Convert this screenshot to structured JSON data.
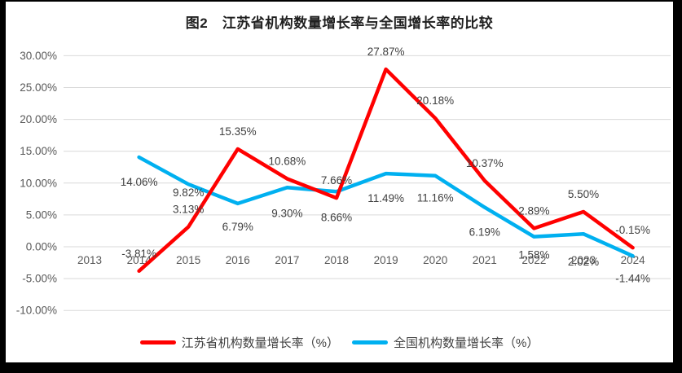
{
  "title": "图2　江苏省机构数量增长率与全国增长率的比较",
  "colors": {
    "surround": "#000000",
    "panel_background": "#FFFFFF",
    "gridline": "#D9D9D9",
    "axis_text": "#595959",
    "data_label_text": "#404040",
    "title_text": "#1F1F1F",
    "series_jiangsu": "#FF0000",
    "series_national": "#00B0F0"
  },
  "chart_data": {
    "type": "line",
    "title": "图2　江苏省机构数量增长率与全国增长率的比较",
    "categories": [
      "2013",
      "2014",
      "2015",
      "2016",
      "2017",
      "2018",
      "2019",
      "2020",
      "2021",
      "2022",
      "2023",
      "2024"
    ],
    "series": [
      {
        "name": "江苏省机构数量增长率（%）",
        "color": "#FF0000",
        "start_category": "2014",
        "values": [
          -3.81,
          3.13,
          15.35,
          10.68,
          7.66,
          27.87,
          20.18,
          10.37,
          2.89,
          5.5,
          -0.15
        ],
        "labels": [
          "-3.81%",
          "3.13%",
          "15.35%",
          "10.68%",
          "7.66%",
          "27.87%",
          "20.18%",
          "10.37%",
          "2.89%",
          "5.50%",
          "-0.15%"
        ],
        "label_position": "above"
      },
      {
        "name": "全国机构数量增长率（%）",
        "color": "#00B0F0",
        "start_category": "2014",
        "values": [
          14.06,
          9.82,
          6.79,
          9.3,
          8.66,
          11.49,
          11.16,
          6.19,
          1.58,
          2.02,
          -1.44
        ],
        "labels": [
          "14.06%",
          "9.82%",
          "6.79%",
          "9.30%",
          "8.66%",
          "11.49%",
          "11.16%",
          "6.19%",
          "1.58%",
          "2.02%",
          "-1.44%"
        ],
        "label_position": "below"
      }
    ],
    "y_axis": {
      "ticks": [
        "30.00%",
        "25.00%",
        "20.00%",
        "15.00%",
        "10.00%",
        "5.00%",
        "0.00%",
        "-5.00%",
        "-10.00%"
      ],
      "tick_values": [
        30,
        25,
        20,
        15,
        10,
        5,
        0,
        -5,
        -10
      ],
      "min": -10,
      "max": 30,
      "step": 5
    },
    "grid": true,
    "markers": false,
    "legend_position": "bottom"
  }
}
